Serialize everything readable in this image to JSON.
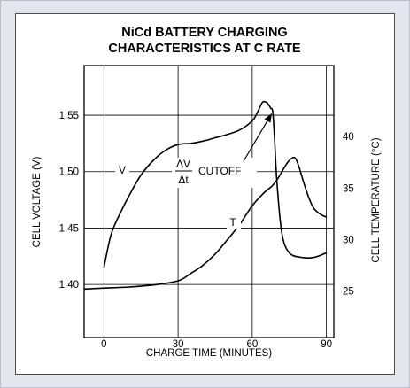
{
  "chart_data": {
    "type": "line",
    "title_lines": [
      "NiCd BATTERY CHARGING",
      "CHARACTERISTICS AT C RATE"
    ],
    "xlabel": "CHARGE TIME (MINUTES)",
    "ylabel_left": "CELL VOLTAGE (V)",
    "ylabel_right": "CELL TEMPERATURE (°C)",
    "xlim": [
      -8,
      93
    ],
    "ylim_left": [
      1.353,
      1.594
    ],
    "ylim_right": [
      20.5,
      46.9
    ],
    "x_ticks": [
      0,
      30,
      60,
      90
    ],
    "y_ticks_left": [
      1.4,
      1.45,
      1.5,
      1.55
    ],
    "y_ticks_right": [
      25,
      30,
      35,
      40
    ],
    "x_tick_labels": [
      "0",
      "30",
      "60",
      "90"
    ],
    "y_tick_labels_left": [
      "1.40",
      "1.45",
      "1.50",
      "1.55"
    ],
    "y_tick_labels_right": [
      "25",
      "30",
      "35",
      "40"
    ],
    "grid": true,
    "series": [
      {
        "name": "V",
        "axis": "left",
        "x": [
          0,
          3,
          7,
          11,
          15,
          20,
          25,
          30,
          35,
          40,
          45,
          50,
          55,
          60,
          62,
          64,
          65,
          66,
          67,
          67.5,
          68.3,
          69,
          70,
          72,
          75,
          80,
          85,
          90
        ],
        "y": [
          1.415,
          1.445,
          1.465,
          1.482,
          1.497,
          1.51,
          1.519,
          1.524,
          1.525,
          1.527,
          1.53,
          1.533,
          1.537,
          1.545,
          1.552,
          1.561,
          1.562,
          1.561,
          1.558,
          1.556,
          1.553,
          1.53,
          1.49,
          1.445,
          1.428,
          1.424,
          1.424,
          1.428
        ]
      },
      {
        "name": "T",
        "axis": "right",
        "x": [
          -8,
          0,
          10,
          20,
          30,
          35,
          40,
          45,
          50,
          55,
          60,
          65,
          68,
          70,
          72,
          74,
          76,
          77.5,
          79,
          81,
          83,
          85,
          88,
          90
        ],
        "y": [
          25.2,
          25.3,
          25.4,
          25.6,
          26.0,
          26.7,
          27.5,
          28.6,
          30.0,
          31.5,
          33.3,
          34.6,
          35.2,
          35.8,
          36.6,
          37.4,
          37.9,
          37.9,
          37.0,
          35.4,
          34.0,
          33.0,
          32.4,
          32.2
        ]
      }
    ],
    "annotations": {
      "v_label": "V",
      "t_label": "T",
      "dv_num": "ΔV",
      "dv_den": "Δt",
      "cutoff": "CUTOFF"
    },
    "cutoff_point": {
      "x": 68.3,
      "y": 1.553
    }
  }
}
